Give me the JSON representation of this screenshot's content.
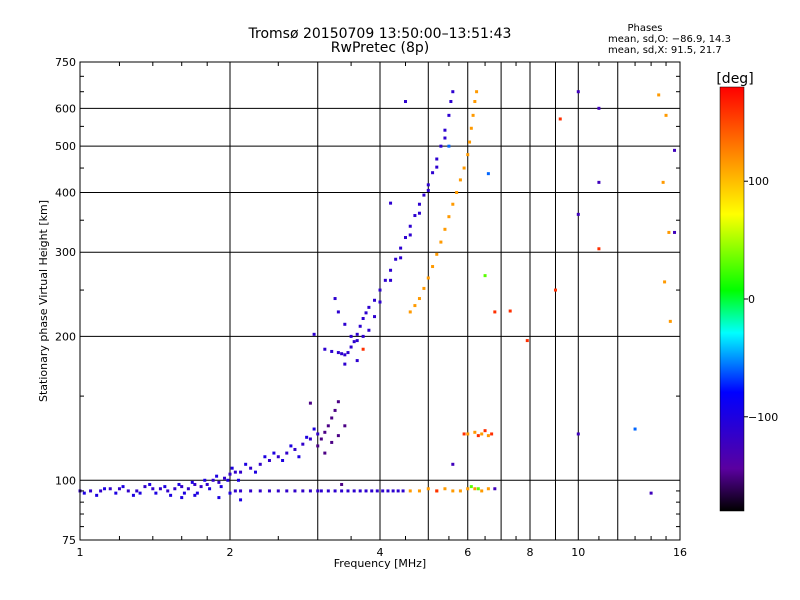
{
  "chart_data": {
    "type": "scatter",
    "title": "Tromsø 20150709 13:50:00–13:51:43",
    "subtitle": "RwPretec (8p)",
    "xlabel": "Frequency [MHz]",
    "ylabel": "Stationary phase Virtual Height [km]",
    "x_scale": "log",
    "y_scale": "log",
    "xlim": [
      1,
      16
    ],
    "ylim": [
      75,
      750
    ],
    "x_ticks": [
      1,
      2,
      4,
      6,
      8,
      10,
      16
    ],
    "x_minor_gridlines": [
      3,
      5,
      7,
      9,
      12
    ],
    "y_ticks": [
      75,
      100,
      200,
      300,
      400,
      500,
      600,
      750
    ],
    "grid": true,
    "phase_stats": {
      "heading": "Phases",
      "line_o": "mean, sd,O: −86.9, 14.3",
      "line_x": "mean, sd,X:  91.5, 21.7"
    },
    "colorbar": {
      "label": "[deg]",
      "range": [
        -180,
        180
      ],
      "ticks": [
        100,
        0,
        -100
      ],
      "tick_labels": [
        "100",
        "0",
        "−100"
      ]
    },
    "series": [
      {
        "phase_deg": -115,
        "points": [
          [
            1.0,
            95
          ],
          [
            1.05,
            95
          ],
          [
            1.1,
            95
          ],
          [
            1.15,
            96
          ],
          [
            1.2,
            96
          ],
          [
            1.25,
            95
          ],
          [
            1.3,
            95
          ],
          [
            1.35,
            97
          ],
          [
            1.4,
            96
          ],
          [
            1.45,
            96
          ],
          [
            1.5,
            95
          ],
          [
            1.55,
            96
          ],
          [
            1.6,
            97
          ],
          [
            1.65,
            96
          ],
          [
            1.7,
            98
          ],
          [
            1.75,
            97
          ],
          [
            1.8,
            98
          ],
          [
            1.85,
            100
          ],
          [
            1.9,
            99
          ],
          [
            1.95,
            101
          ],
          [
            2.0,
            103
          ],
          [
            2.05,
            104
          ],
          [
            2.1,
            104
          ],
          [
            2.2,
            106
          ],
          [
            2.3,
            108
          ],
          [
            2.4,
            110
          ],
          [
            2.5,
            112
          ],
          [
            2.6,
            114
          ],
          [
            2.7,
            116
          ],
          [
            2.8,
            119
          ],
          [
            2.9,
            122
          ],
          [
            3.0,
            125
          ],
          [
            2.05,
            95
          ],
          [
            2.1,
            95
          ],
          [
            2.2,
            95
          ],
          [
            2.3,
            95
          ],
          [
            2.4,
            95
          ],
          [
            2.5,
            95
          ],
          [
            2.6,
            95
          ],
          [
            2.7,
            95
          ],
          [
            2.8,
            95
          ],
          [
            2.9,
            95
          ],
          [
            3.0,
            95
          ]
        ]
      },
      {
        "phase_deg": -100,
        "points": [
          [
            1.02,
            94
          ],
          [
            1.08,
            93
          ],
          [
            1.12,
            96
          ],
          [
            1.18,
            94
          ],
          [
            1.22,
            97
          ],
          [
            1.28,
            93
          ],
          [
            1.32,
            94
          ],
          [
            1.38,
            98
          ],
          [
            1.42,
            94
          ],
          [
            1.48,
            97
          ],
          [
            1.52,
            93
          ],
          [
            1.58,
            98
          ],
          [
            1.62,
            94
          ],
          [
            1.68,
            99
          ],
          [
            1.72,
            94
          ],
          [
            1.78,
            100
          ],
          [
            1.82,
            96
          ],
          [
            1.88,
            102
          ],
          [
            1.92,
            97
          ],
          [
            1.98,
            100
          ],
          [
            2.02,
            106
          ],
          [
            2.08,
            100
          ],
          [
            2.15,
            108
          ],
          [
            2.25,
            104
          ],
          [
            2.35,
            112
          ],
          [
            2.45,
            114
          ],
          [
            2.55,
            110
          ],
          [
            2.65,
            118
          ],
          [
            2.75,
            112
          ],
          [
            2.85,
            123
          ],
          [
            2.95,
            128
          ],
          [
            1.6,
            92
          ],
          [
            1.7,
            93
          ],
          [
            1.9,
            92
          ],
          [
            2.0,
            94
          ],
          [
            2.1,
            91
          ]
        ]
      },
      {
        "phase_deg": -112,
        "points": [
          [
            3.05,
            95
          ],
          [
            3.15,
            95
          ],
          [
            3.25,
            95
          ],
          [
            3.35,
            95
          ],
          [
            3.45,
            95
          ],
          [
            3.55,
            95
          ],
          [
            3.65,
            95
          ],
          [
            3.75,
            95
          ],
          [
            3.85,
            95
          ],
          [
            3.95,
            95
          ],
          [
            4.05,
            95
          ],
          [
            4.15,
            95
          ],
          [
            4.25,
            95
          ],
          [
            4.35,
            95
          ],
          [
            4.45,
            95
          ],
          [
            3.3,
            185
          ],
          [
            3.35,
            184
          ],
          [
            3.4,
            183
          ],
          [
            3.45,
            185
          ],
          [
            3.5,
            190
          ],
          [
            3.55,
            195
          ],
          [
            3.6,
            202
          ],
          [
            3.65,
            210
          ],
          [
            3.7,
            218
          ],
          [
            3.75,
            224
          ],
          [
            3.8,
            230
          ],
          [
            3.9,
            238
          ],
          [
            4.0,
            250
          ],
          [
            4.1,
            262
          ],
          [
            4.2,
            275
          ],
          [
            4.3,
            290
          ],
          [
            4.4,
            306
          ],
          [
            4.5,
            322
          ],
          [
            4.6,
            340
          ],
          [
            4.7,
            358
          ],
          [
            4.8,
            378
          ],
          [
            4.9,
            395
          ],
          [
            5.0,
            415
          ],
          [
            5.1,
            440
          ],
          [
            5.2,
            470
          ],
          [
            5.3,
            500
          ],
          [
            5.4,
            540
          ],
          [
            5.5,
            580
          ],
          [
            5.55,
            620
          ],
          [
            5.6,
            650
          ],
          [
            3.25,
            240
          ],
          [
            3.3,
            225
          ],
          [
            3.4,
            212
          ],
          [
            3.5,
            200
          ],
          [
            3.6,
            196
          ],
          [
            3.7,
            200
          ],
          [
            3.8,
            206
          ],
          [
            3.9,
            220
          ],
          [
            4.0,
            236
          ],
          [
            4.2,
            262
          ],
          [
            4.4,
            292
          ],
          [
            4.6,
            326
          ],
          [
            4.8,
            362
          ],
          [
            5.0,
            404
          ],
          [
            5.2,
            452
          ],
          [
            5.4,
            520
          ],
          [
            3.1,
            188
          ],
          [
            3.2,
            186
          ],
          [
            2.95,
            202
          ],
          [
            3.4,
            175
          ],
          [
            3.6,
            178
          ],
          [
            4.5,
            620
          ],
          [
            4.2,
            380
          ]
        ]
      },
      {
        "phase_deg": -150,
        "points": [
          [
            3.0,
            118
          ],
          [
            3.05,
            122
          ],
          [
            3.1,
            126
          ],
          [
            3.15,
            130
          ],
          [
            3.2,
            135
          ],
          [
            3.25,
            140
          ],
          [
            3.3,
            146
          ],
          [
            3.1,
            114
          ],
          [
            3.2,
            120
          ],
          [
            3.3,
            124
          ],
          [
            3.4,
            130
          ],
          [
            2.9,
            145
          ],
          [
            3.35,
            98
          ]
        ]
      },
      {
        "phase_deg": 115,
        "points": [
          [
            4.6,
            225
          ],
          [
            4.7,
            232
          ],
          [
            4.8,
            240
          ],
          [
            4.9,
            252
          ],
          [
            5.0,
            265
          ],
          [
            5.1,
            280
          ],
          [
            5.2,
            297
          ],
          [
            5.3,
            315
          ],
          [
            5.4,
            335
          ],
          [
            5.5,
            356
          ],
          [
            5.6,
            378
          ],
          [
            5.7,
            400
          ],
          [
            5.8,
            425
          ],
          [
            5.9,
            450
          ],
          [
            6.0,
            480
          ],
          [
            6.05,
            510
          ],
          [
            6.1,
            545
          ],
          [
            6.15,
            580
          ],
          [
            6.2,
            620
          ],
          [
            6.25,
            650
          ],
          [
            4.6,
            95
          ],
          [
            4.8,
            95
          ],
          [
            5.0,
            96
          ],
          [
            5.2,
            95
          ],
          [
            5.4,
            96
          ],
          [
            5.6,
            95
          ],
          [
            5.8,
            95
          ],
          [
            6.0,
            96
          ],
          [
            6.2,
            96
          ],
          [
            6.4,
            95
          ],
          [
            6.6,
            96
          ],
          [
            6.0,
            125
          ],
          [
            6.2,
            126
          ],
          [
            6.4,
            125
          ],
          [
            6.6,
            124
          ],
          [
            14.5,
            640
          ],
          [
            15.0,
            580
          ],
          [
            14.8,
            420
          ],
          [
            15.2,
            330
          ],
          [
            14.9,
            260
          ],
          [
            15.3,
            215
          ]
        ]
      },
      {
        "phase_deg": 160,
        "points": [
          [
            5.2,
            95
          ],
          [
            5.9,
            125
          ],
          [
            6.3,
            124
          ],
          [
            6.5,
            127
          ],
          [
            6.7,
            125
          ],
          [
            9.2,
            570
          ],
          [
            7.9,
            196
          ],
          [
            3.7,
            188
          ],
          [
            11.0,
            305
          ],
          [
            9.0,
            250
          ],
          [
            6.8,
            225
          ],
          [
            7.3,
            226
          ]
        ]
      },
      {
        "phase_deg": 30,
        "points": [
          [
            6.5,
            268
          ],
          [
            6.1,
            97
          ],
          [
            6.3,
            96
          ]
        ]
      },
      {
        "phase_deg": -60,
        "points": [
          [
            6.6,
            438
          ],
          [
            5.5,
            500
          ],
          [
            13.0,
            128
          ]
        ]
      },
      {
        "phase_deg": -125,
        "points": [
          [
            10.0,
            650
          ],
          [
            10.0,
            360
          ],
          [
            11.0,
            600
          ],
          [
            11.0,
            420
          ],
          [
            10.0,
            125
          ],
          [
            15.6,
            330
          ],
          [
            14.0,
            94
          ],
          [
            6.8,
            96
          ],
          [
            5.6,
            108
          ],
          [
            15.6,
            490
          ]
        ]
      }
    ]
  }
}
